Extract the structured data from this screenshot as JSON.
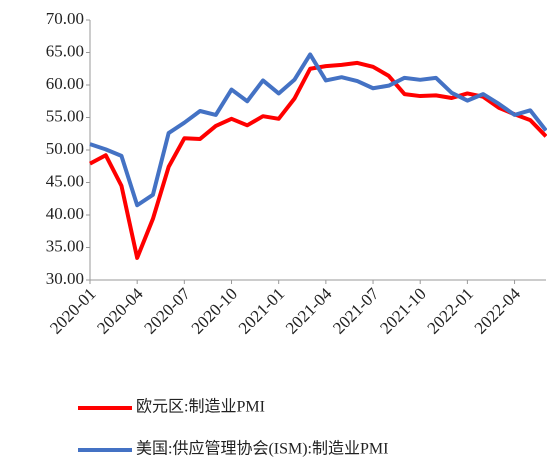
{
  "chart_data": {
    "type": "line",
    "categories": [
      "2020-01",
      null,
      null,
      "2020-04",
      null,
      null,
      "2020-07",
      null,
      null,
      "2020-10",
      null,
      null,
      "2021-01",
      null,
      null,
      "2021-04",
      null,
      null,
      "2021-07",
      null,
      null,
      "2021-10",
      null,
      null,
      "2022-01",
      null,
      null,
      "2022-04",
      null,
      null
    ],
    "series": [
      {
        "name": "欧元区:制造业PMI",
        "color": "#ff0000",
        "values": [
          47.9,
          49.2,
          44.5,
          33.4,
          39.4,
          47.4,
          51.8,
          51.7,
          53.7,
          54.8,
          53.8,
          55.2,
          54.8,
          57.9,
          62.5,
          62.9,
          63.1,
          63.4,
          62.8,
          61.4,
          58.6,
          58.3,
          58.4,
          58.0,
          58.7,
          58.2,
          56.5,
          55.5,
          54.6,
          52.1
        ]
      },
      {
        "name": "美国:供应管理协会(ISM):制造业PMI",
        "color": "#4472c4",
        "values": [
          50.9,
          50.1,
          49.1,
          41.5,
          43.1,
          52.6,
          54.2,
          56.0,
          55.4,
          59.3,
          57.5,
          60.7,
          58.7,
          60.8,
          64.7,
          60.7,
          61.2,
          60.6,
          59.5,
          59.9,
          61.1,
          60.8,
          61.1,
          58.8,
          57.6,
          58.6,
          57.1,
          55.4,
          56.1,
          53.0
        ]
      }
    ],
    "ylim": [
      30,
      70
    ],
    "yticks": [
      {
        "value": 30,
        "label": "30.00"
      },
      {
        "value": 35,
        "label": "35.00"
      },
      {
        "value": 40,
        "label": "40.00"
      },
      {
        "value": 45,
        "label": "45.00"
      },
      {
        "value": 50,
        "label": "50.00"
      },
      {
        "value": 55,
        "label": "55.00"
      },
      {
        "value": 60,
        "label": "60.00"
      },
      {
        "value": 65,
        "label": "65.00"
      },
      {
        "value": 70,
        "label": "70.00"
      }
    ],
    "grid": false
  }
}
